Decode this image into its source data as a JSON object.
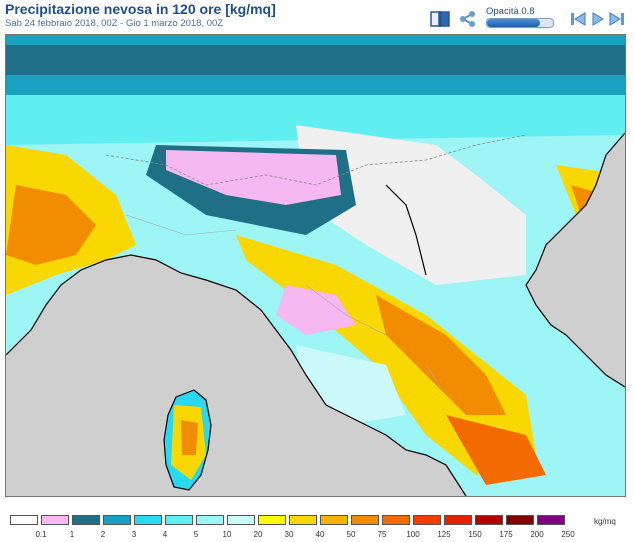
{
  "header": {
    "title": "Precipitazione nevosa in 120 ore [kg/mq]",
    "subtitle": "Sab 24 febbraio 2018, 00Z - Gio 1 marzo 2018, 00Z"
  },
  "toolbar": {
    "opacity_label": "Opacità 0.8",
    "opacity_value": 0.8,
    "icons": [
      "book-icon",
      "share-icon",
      "first-frame-icon",
      "play-icon",
      "last-frame-icon"
    ]
  },
  "legend": {
    "unit": "kg/mq",
    "ticks": [
      "0.1",
      "1",
      "2",
      "3",
      "4",
      "5",
      "10",
      "20",
      "30",
      "40",
      "50",
      "75",
      "100",
      "125",
      "150",
      "175",
      "200",
      "250"
    ],
    "colors": [
      "#ffffff",
      "#f5b8f0",
      "#1f6f86",
      "#1aa0c0",
      "#2ad8f0",
      "#60eef0",
      "#9df5f5",
      "#ccfafa",
      "#ffff00",
      "#f8d800",
      "#f4b400",
      "#f28c00",
      "#f26a00",
      "#f23c00",
      "#e82000",
      "#b00000",
      "#800000",
      "#800080"
    ]
  },
  "colors": {
    "sea": "#cfcfcf",
    "land_nosnow": "#f0f0f0",
    "title": "#1f4e8c"
  }
}
